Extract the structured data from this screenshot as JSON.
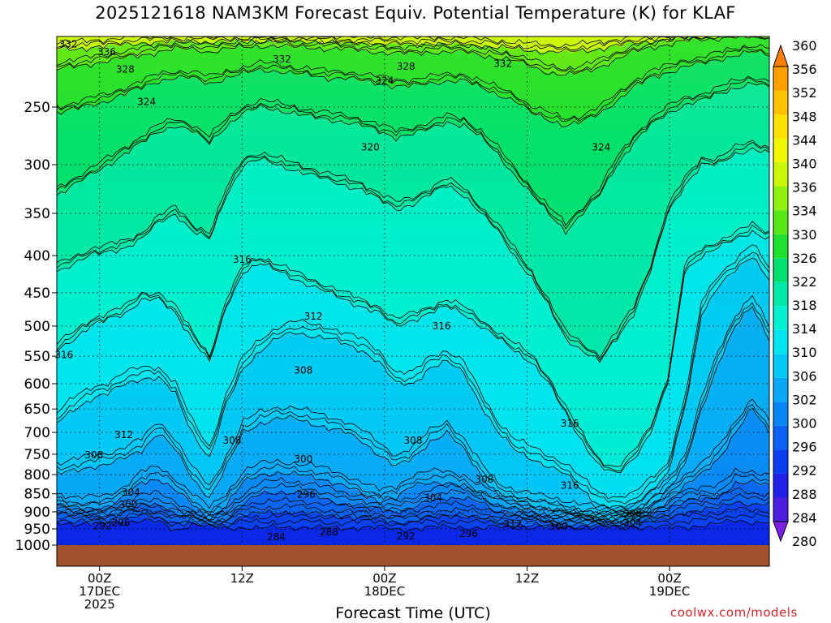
{
  "chart_data": {
    "type": "contour",
    "title": "2025121618 NAM3KM Forecast Equiv. Potential Temperature (K) for KLAF",
    "xlabel": "Forecast Time (UTC)",
    "ylabel": "",
    "credit": "coolwx.com/models",
    "y_axis": {
      "scale": "log",
      "inverted": true,
      "range": [
        200,
        1000
      ],
      "ticks": [
        250,
        300,
        350,
        400,
        450,
        500,
        550,
        600,
        650,
        700,
        750,
        800,
        850,
        900,
        950,
        1000
      ]
    },
    "x_axis": {
      "range_hours": [
        -3,
        47
      ],
      "ticks": [
        {
          "hour": 0,
          "lines": [
            "00Z",
            "17DEC",
            "2025"
          ]
        },
        {
          "hour": 10,
          "lines": [
            "12Z"
          ]
        },
        {
          "hour": 20,
          "lines": [
            "00Z",
            "18DEC"
          ]
        },
        {
          "hour": 30,
          "lines": [
            "12Z"
          ]
        },
        {
          "hour": 40,
          "lines": [
            "00Z",
            "19DEC"
          ]
        }
      ]
    },
    "grid": true,
    "colorbar": {
      "position": "right",
      "levels": [
        280,
        284,
        288,
        292,
        296,
        300,
        302,
        306,
        310,
        314,
        318,
        322,
        326,
        330,
        334,
        336,
        340,
        344,
        348,
        352,
        356,
        360
      ],
      "colors": [
        "#7a1fe6",
        "#4a1fe0",
        "#2020e6",
        "#0a3cf0",
        "#0a60f0",
        "#0a86f4",
        "#08a8f6",
        "#00c8f6",
        "#00e4f0",
        "#00f0d2",
        "#00e8a6",
        "#00e070",
        "#20e030",
        "#58e818",
        "#90f010",
        "#c8f808",
        "#f0f800",
        "#ffe000",
        "#ffc000",
        "#ffa000",
        "#ff8000"
      ]
    },
    "series": [
      {
        "level": 292,
        "p": [
          930,
          935,
          935,
          938,
          930,
          925,
          930,
          955,
          935,
          945,
          948,
          945,
          948,
          945,
          945,
          945,
          948,
          948,
          945,
          945,
          952,
          950,
          945,
          945,
          945,
          948,
          945,
          945,
          945,
          945,
          945,
          945,
          945,
          945,
          945,
          945,
          945,
          945,
          940,
          935,
          925,
          930,
          930
        ]
      },
      {
        "level": 296,
        "p": [
          920,
          928,
          928,
          930,
          920,
          910,
          920,
          930,
          935,
          940,
          940,
          910,
          905,
          902,
          900,
          905,
          912,
          915,
          918,
          922,
          930,
          928,
          915,
          910,
          912,
          920,
          935,
          938,
          940,
          942,
          942,
          942,
          942,
          942,
          940,
          930,
          920,
          900,
          895,
          890,
          870,
          880,
          880
        ]
      },
      {
        "level": 300,
        "p": [
          900,
          910,
          910,
          910,
          900,
          880,
          880,
          905,
          925,
          935,
          920,
          880,
          850,
          845,
          848,
          852,
          865,
          880,
          885,
          890,
          900,
          890,
          870,
          860,
          862,
          875,
          900,
          910,
          920,
          930,
          935,
          937,
          937,
          935,
          930,
          915,
          890,
          870,
          860,
          860,
          820,
          820,
          830
        ]
      },
      {
        "level": 304,
        "p": [
          880,
          890,
          890,
          885,
          860,
          820,
          810,
          840,
          880,
          920,
          880,
          820,
          800,
          795,
          800,
          805,
          815,
          830,
          850,
          870,
          860,
          830,
          820,
          820,
          830,
          860,
          880,
          890,
          900,
          910,
          920,
          925,
          928,
          928,
          925,
          900,
          870,
          830,
          800,
          760,
          700,
          650,
          700
        ]
      },
      {
        "level": 308,
        "p": [
          800,
          790,
          780,
          775,
          760,
          740,
          700,
          740,
          810,
          860,
          780,
          700,
          680,
          670,
          670,
          680,
          690,
          700,
          720,
          750,
          780,
          760,
          720,
          700,
          740,
          800,
          850,
          870,
          880,
          890,
          900,
          910,
          920,
          920,
          915,
          880,
          840,
          780,
          650,
          560,
          500,
          470,
          520
        ]
      },
      {
        "level": 312,
        "p": [
          680,
          650,
          630,
          620,
          600,
          590,
          590,
          620,
          700,
          760,
          640,
          570,
          540,
          520,
          510,
          515,
          520,
          530,
          540,
          560,
          600,
          600,
          570,
          560,
          580,
          640,
          700,
          740,
          760,
          780,
          800,
          840,
          880,
          890,
          880,
          840,
          800,
          650,
          480,
          440,
          420,
          400,
          430
        ]
      },
      {
        "level": 316,
        "p": [
          540,
          520,
          500,
          490,
          480,
          460,
          460,
          480,
          520,
          560,
          470,
          420,
          410,
          420,
          430,
          440,
          450,
          460,
          470,
          480,
          500,
          490,
          480,
          470,
          480,
          500,
          520,
          540,
          560,
          600,
          660,
          720,
          780,
          800,
          760,
          700,
          600,
          420,
          400,
          390,
          380,
          370,
          380
        ]
      },
      {
        "level": 320,
        "p": [
          420,
          410,
          400,
          395,
          390,
          380,
          360,
          350,
          370,
          380,
          330,
          300,
          295,
          300,
          305,
          310,
          315,
          320,
          325,
          335,
          345,
          340,
          330,
          320,
          330,
          350,
          370,
          400,
          430,
          470,
          520,
          540,
          560,
          520,
          480,
          420,
          350,
          320,
          300,
          300,
          290,
          285,
          290
        ]
      },
      {
        "level": 324,
        "p": [
          330,
          320,
          310,
          300,
          290,
          280,
          270,
          265,
          270,
          280,
          265,
          255,
          250,
          252,
          255,
          258,
          260,
          262,
          265,
          270,
          275,
          272,
          268,
          262,
          265,
          275,
          290,
          310,
          330,
          350,
          370,
          350,
          330,
          300,
          280,
          265,
          255,
          248,
          245,
          240,
          235,
          232,
          235
        ]
      },
      {
        "level": 328,
        "p": [
          255,
          252,
          248,
          245,
          240,
          235,
          230,
          228,
          228,
          232,
          228,
          225,
          222,
          223,
          225,
          226,
          228,
          228,
          230,
          232,
          234,
          234,
          232,
          230,
          230,
          235,
          240,
          245,
          255,
          260,
          265,
          262,
          255,
          245,
          235,
          228,
          224,
          220,
          218,
          215,
          212,
          210,
          212
        ]
      },
      {
        "level": 332,
        "p": [
          222,
          220,
          218,
          216,
          214,
          212,
          210,
          208,
          208,
          210,
          208,
          207,
          206,
          206,
          207,
          207,
          208,
          208,
          209,
          210,
          211,
          211,
          210,
          210,
          210,
          212,
          214,
          216,
          220,
          224,
          226,
          224,
          220,
          215,
          210,
          207,
          205,
          203,
          202,
          201,
          200,
          200,
          200
        ]
      },
      {
        "level": 336,
        "p": [
          208,
          208,
          207,
          206,
          205,
          204,
          204,
          203,
          203,
          204,
          203,
          203,
          203,
          203,
          203,
          203,
          204,
          204,
          204,
          205,
          205,
          205,
          205,
          205,
          205,
          206,
          207,
          208,
          209,
          210,
          210,
          209,
          208,
          206,
          204,
          203,
          202,
          201,
          200,
          200,
          200,
          200,
          200
        ]
      }
    ],
    "annotations": [
      {
        "text": "332",
        "hour": -2.2,
        "p": 205
      },
      {
        "text": "336",
        "hour": 0.5,
        "p": 210
      },
      {
        "text": "332",
        "hour": 12.8,
        "p": 215
      },
      {
        "text": "328",
        "hour": 1.8,
        "p": 222
      },
      {
        "text": "328",
        "hour": 21.5,
        "p": 220
      },
      {
        "text": "324",
        "hour": 20.0,
        "p": 230
      },
      {
        "text": "332",
        "hour": 28.3,
        "p": 218
      },
      {
        "text": "324",
        "hour": 3.3,
        "p": 246
      },
      {
        "text": "320",
        "hour": 19.0,
        "p": 284
      },
      {
        "text": "324",
        "hour": 35.2,
        "p": 284
      },
      {
        "text": "316",
        "hour": 10.0,
        "p": 405
      },
      {
        "text": "316",
        "hour": -2.5,
        "p": 548
      },
      {
        "text": "312",
        "hour": 15.0,
        "p": 485
      },
      {
        "text": "316",
        "hour": 24.0,
        "p": 500
      },
      {
        "text": "308",
        "hour": 14.3,
        "p": 575
      },
      {
        "text": "312",
        "hour": 1.7,
        "p": 705
      },
      {
        "text": "308",
        "hour": -0.4,
        "p": 752
      },
      {
        "text": "308",
        "hour": 9.3,
        "p": 718
      },
      {
        "text": "308",
        "hour": 22.0,
        "p": 718
      },
      {
        "text": "300",
        "hour": 14.3,
        "p": 762
      },
      {
        "text": "304",
        "hour": 2.2,
        "p": 846
      },
      {
        "text": "300",
        "hour": 2.0,
        "p": 880
      },
      {
        "text": "296",
        "hour": 14.5,
        "p": 852
      },
      {
        "text": "304",
        "hour": 23.4,
        "p": 862
      },
      {
        "text": "308",
        "hour": 27.0,
        "p": 812
      },
      {
        "text": "316",
        "hour": 33.0,
        "p": 828
      },
      {
        "text": "316",
        "hour": 33.0,
        "p": 680
      },
      {
        "text": "308",
        "hour": 37.4,
        "p": 905
      },
      {
        "text": "304",
        "hour": 37.4,
        "p": 932
      },
      {
        "text": "312",
        "hour": 29.0,
        "p": 936
      },
      {
        "text": "300",
        "hour": 32.2,
        "p": 943
      },
      {
        "text": "296",
        "hour": 1.5,
        "p": 932
      },
      {
        "text": "292",
        "hour": 0.2,
        "p": 942
      },
      {
        "text": "296",
        "hour": 25.9,
        "p": 965
      },
      {
        "text": "292",
        "hour": 21.5,
        "p": 972
      },
      {
        "text": "288",
        "hour": 16.1,
        "p": 960
      },
      {
        "text": "284",
        "hour": 12.4,
        "p": 975
      }
    ]
  }
}
